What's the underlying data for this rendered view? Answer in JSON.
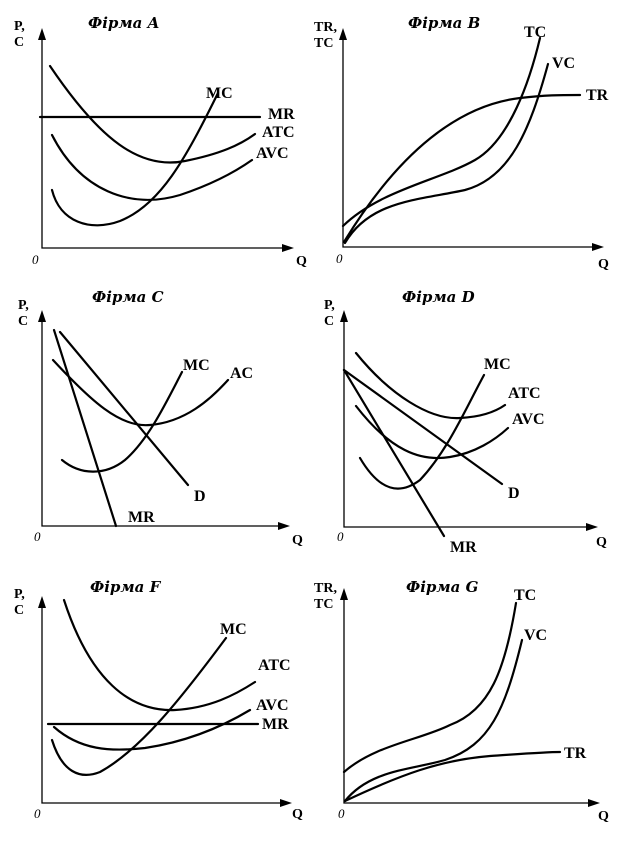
{
  "panels": [
    {
      "id": "A",
      "title": "Фірма A",
      "y_axis": [
        "P,",
        "C"
      ],
      "x_axis": "Q",
      "origin": "0",
      "labels": [
        "MC",
        "MR",
        "ATC",
        "AVC"
      ]
    },
    {
      "id": "B",
      "title": "Фірма B",
      "y_axis": [
        "TR,",
        "TC"
      ],
      "x_axis": "Q",
      "origin": "0",
      "labels": [
        "TC",
        "VC",
        "TR"
      ]
    },
    {
      "id": "C",
      "title": "Фірма C",
      "y_axis": [
        "P,",
        "C"
      ],
      "x_axis": "Q",
      "origin": "0",
      "labels": [
        "MC",
        "AC",
        "D",
        "MR"
      ]
    },
    {
      "id": "D",
      "title": "Фірма D",
      "y_axis": [
        "P,",
        "C"
      ],
      "x_axis": "Q",
      "origin": "0",
      "labels": [
        "MC",
        "ATC",
        "AVC",
        "D",
        "MR"
      ]
    },
    {
      "id": "F",
      "title": "Фірма F",
      "y_axis": [
        "P,",
        "C"
      ],
      "x_axis": "Q",
      "origin": "0",
      "labels": [
        "MC",
        "ATC",
        "AVC",
        "MR"
      ]
    },
    {
      "id": "G",
      "title": "Фірма G",
      "y_axis": [
        "TR,",
        "TC"
      ],
      "x_axis": "Q",
      "origin": "0",
      "labels": [
        "TC",
        "VC",
        "TR"
      ]
    }
  ]
}
